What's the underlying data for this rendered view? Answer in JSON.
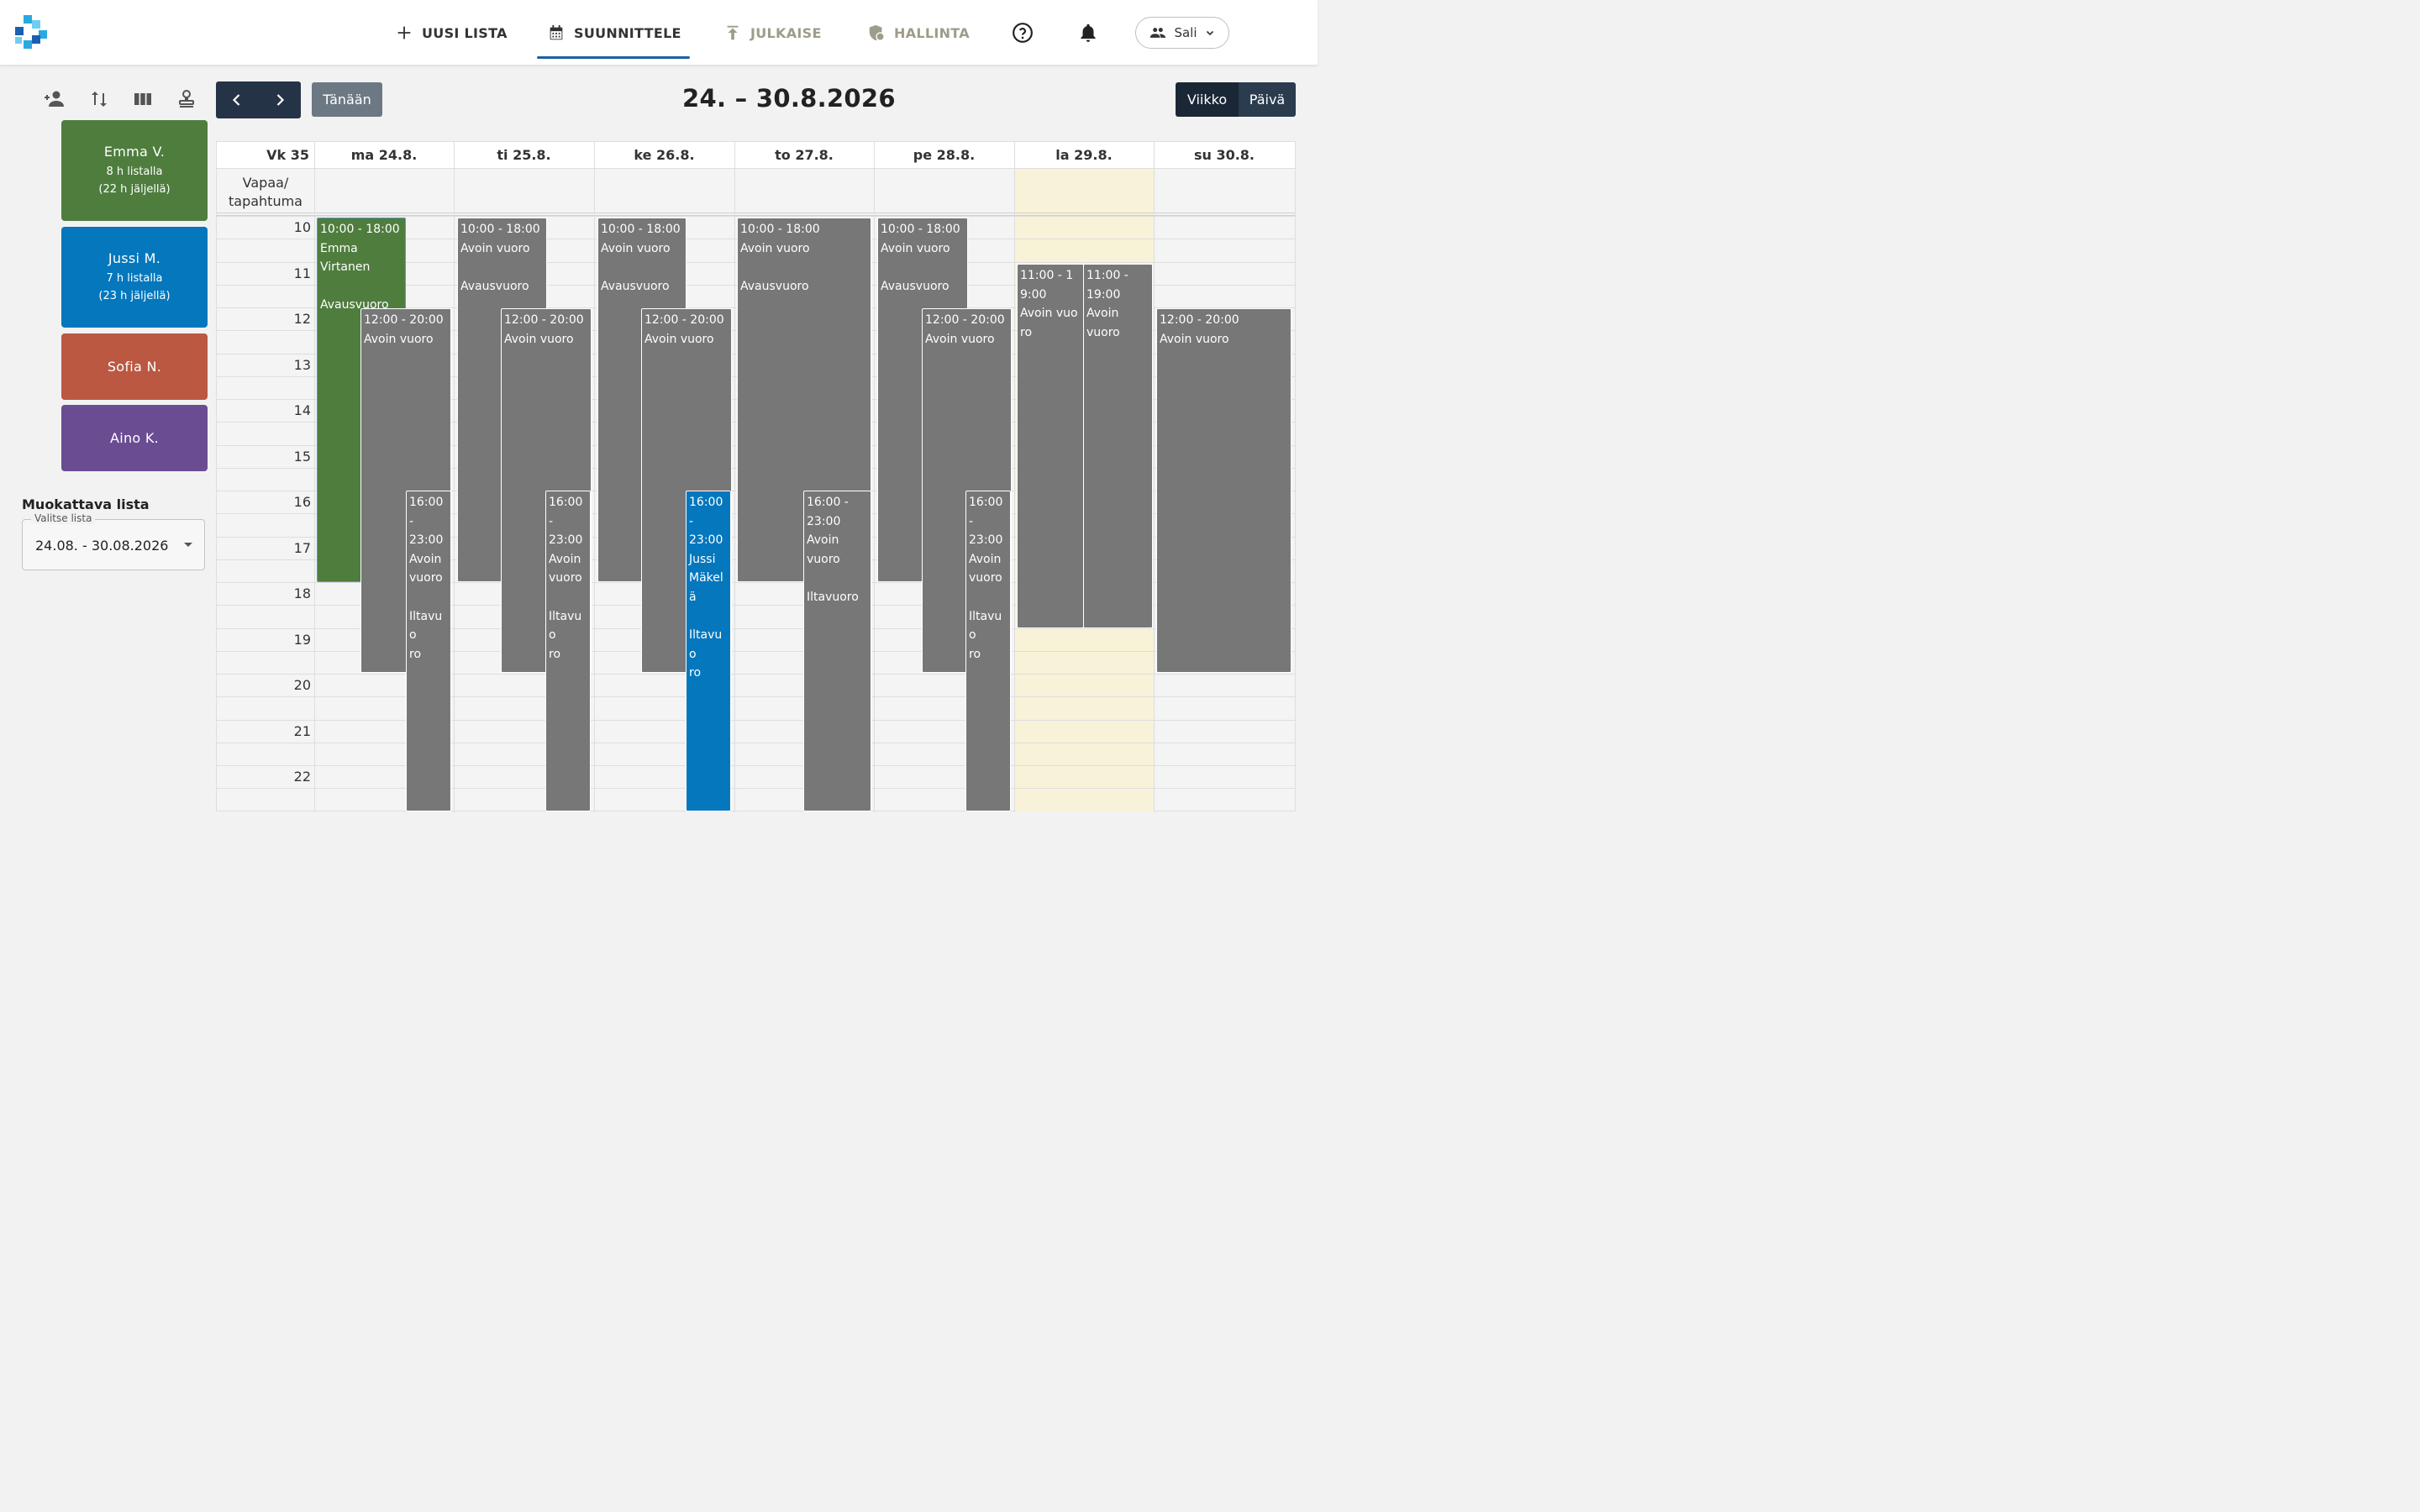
{
  "nav": {
    "new_list": "UUSI LISTA",
    "plan": "SUUNNITTELE",
    "publish": "JULKAISE",
    "admin": "HALLINTA",
    "location": "Sali"
  },
  "employees": [
    {
      "name": "Emma V.",
      "hours": "8 h listalla",
      "remaining": "(22 h jäljellä)",
      "color": "#4e7d3e"
    },
    {
      "name": "Jussi M.",
      "hours": "7 h listalla",
      "remaining": "(23 h jäljellä)",
      "color": "#0477bd"
    },
    {
      "name": "Sofia N.",
      "color": "#bb5841"
    },
    {
      "name": "Aino K.",
      "color": "#6a4c93"
    }
  ],
  "list_selector": {
    "title": "Muokattava lista",
    "label": "Valitse lista",
    "value": "24.08. - 30.08.2026"
  },
  "calendar": {
    "today": "Tänään",
    "range": "24. – 30.8.2026",
    "view_week": "Viikko",
    "view_day": "Päivä",
    "week_label": "Vk 35",
    "allday_label_1": "Vapaa/",
    "allday_label_2": "tapahtuma",
    "days": [
      "ma 24.8.",
      "ti 25.8.",
      "ke 26.8.",
      "to 27.8.",
      "pe 28.8.",
      "la 29.8.",
      "su 30.8."
    ],
    "hours": [
      "10",
      "11",
      "12",
      "13",
      "14",
      "15",
      "16",
      "17",
      "18",
      "19",
      "20",
      "21",
      "22"
    ]
  },
  "shifts": [
    {
      "lines": [
        "10:00 - 18:00",
        "Emma",
        "Virtanen",
        "",
        "Avausvuoro"
      ]
    },
    {
      "lines": [
        "12:00 - 20:00",
        "Avoin vuoro"
      ]
    },
    {
      "lines": [
        "16:00",
        "-",
        "23:00",
        "Avoin",
        "vuoro",
        "",
        "Iltavuo",
        "ro"
      ]
    },
    {
      "lines": [
        "10:00 - 18:00",
        "Avoin vuoro",
        "",
        "Avausvuoro"
      ]
    },
    {
      "lines": [
        "12:00 - 20:00",
        "Avoin vuoro"
      ]
    },
    {
      "lines": [
        "16:00",
        "-",
        "23:00",
        "Avoin",
        "vuoro",
        "",
        "Iltavuo",
        "ro"
      ]
    },
    {
      "lines": [
        "10:00 - 18:00",
        "Avoin vuoro",
        "",
        "Avausvuoro"
      ]
    },
    {
      "lines": [
        "12:00 - 20:00",
        "Avoin vuoro"
      ]
    },
    {
      "lines": [
        "16:00",
        "-",
        "23:00",
        "Jussi",
        "Mäkel",
        "ä",
        "",
        "Iltavuo",
        "ro"
      ]
    },
    {
      "lines": [
        "10:00 - 18:00",
        "Avoin vuoro",
        "",
        "Avausvuoro"
      ]
    },
    {
      "lines": [
        "16:00 -",
        "23:00",
        "Avoin",
        "vuoro",
        "",
        "Iltavuoro"
      ]
    },
    {
      "lines": [
        "10:00 - 18:00",
        "Avoin vuoro",
        "",
        "Avausvuoro"
      ]
    },
    {
      "lines": [
        "12:00 - 20:00",
        "Avoin vuoro"
      ]
    },
    {
      "lines": [
        "16:00",
        "-",
        "23:00",
        "Avoin",
        "vuoro",
        "",
        "Iltavuo",
        "ro"
      ]
    },
    {
      "lines": [
        "11:00 - 19:00",
        "Avoin vuoro"
      ]
    },
    {
      "lines": [
        "11:00 -",
        "19:00",
        "Avoin",
        "vuoro"
      ]
    },
    {
      "lines": [
        "12:00 - 20:00",
        "Avoin vuoro"
      ]
    }
  ]
}
